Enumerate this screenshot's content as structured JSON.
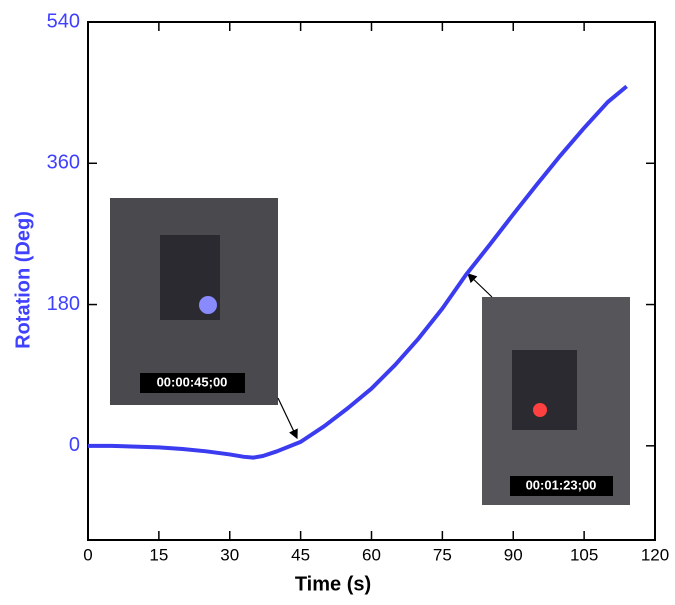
{
  "chart_data": {
    "type": "line",
    "xlabel": "Time (s)",
    "ylabel": "Rotation (Deg)",
    "x": [
      0,
      5,
      10,
      15,
      20,
      25,
      30,
      33,
      35,
      37,
      40,
      45,
      50,
      55,
      60,
      65,
      70,
      75,
      80,
      85,
      90,
      95,
      100,
      105,
      110,
      114
    ],
    "series": [
      {
        "color": "#3b3bf0",
        "values": [
          0,
          0,
          -1,
          -2,
          -4,
          -7,
          -11,
          -14,
          -15,
          -13,
          -7,
          5,
          25,
          48,
          73,
          103,
          137,
          175,
          218,
          256,
          295,
          333,
          370,
          405,
          438,
          458
        ]
      }
    ],
    "xlim": [
      0,
      120
    ],
    "xticks": [
      0,
      15,
      30,
      45,
      60,
      75,
      90,
      105,
      120
    ],
    "ylim": [
      -120,
      540
    ],
    "yticks": [
      0,
      180,
      360,
      540
    ],
    "annotations": [
      "00:00:45;00",
      "00:01:23;00"
    ]
  }
}
